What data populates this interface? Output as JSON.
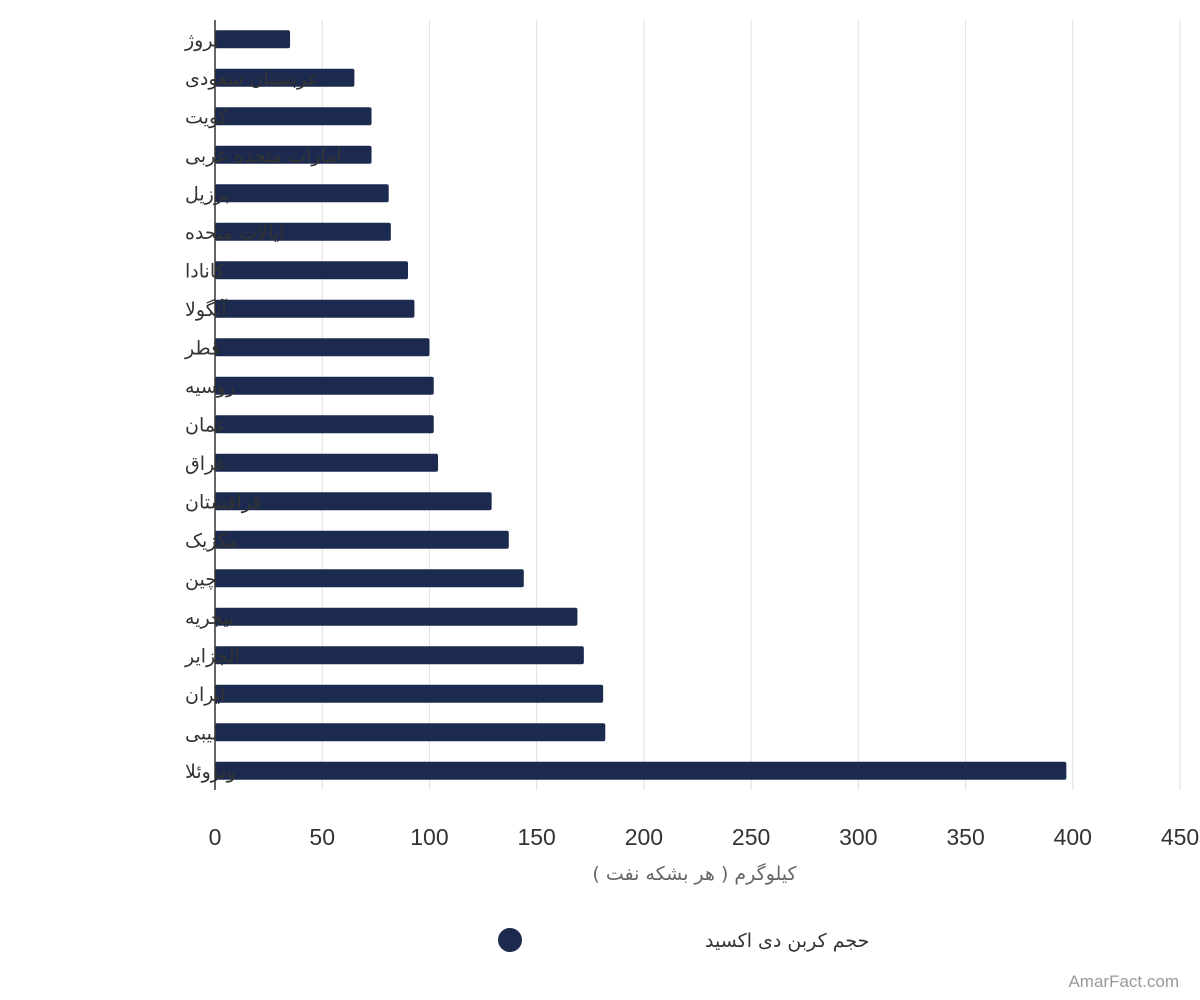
{
  "chart_data": {
    "type": "bar",
    "orientation": "horizontal",
    "categories": [
      "نروژ",
      "عربستان سعودی",
      "کویت",
      "امارات متحده عربی",
      "برزیل",
      "ایالات متحده",
      "کانادا",
      "آنگولا",
      "قطر",
      "روسیه",
      "عمان",
      "عراق",
      "قزاقستان",
      "مکزیک",
      "چین",
      "نیجریه",
      "الجزایر",
      "ایران",
      "لیبی",
      "ونزوئلا"
    ],
    "series": [
      {
        "name": "حجم کربن دی اکسید",
        "values": [
          35,
          65,
          73,
          73,
          81,
          82,
          90,
          93,
          100,
          102,
          102,
          104,
          129,
          137,
          144,
          169,
          172,
          181,
          182,
          397
        ]
      }
    ],
    "xlabel": "کیلوگرم ( هر بشکه نفت )",
    "xlim": [
      0,
      450
    ],
    "ticks": [
      0,
      50,
      100,
      150,
      200,
      250,
      300,
      350,
      400,
      450
    ],
    "grid": true,
    "legend": "bottom-center",
    "bar_color": "#1b2a4e",
    "grid_color": "#e0e0e0"
  },
  "credit": "AmarFact.com"
}
